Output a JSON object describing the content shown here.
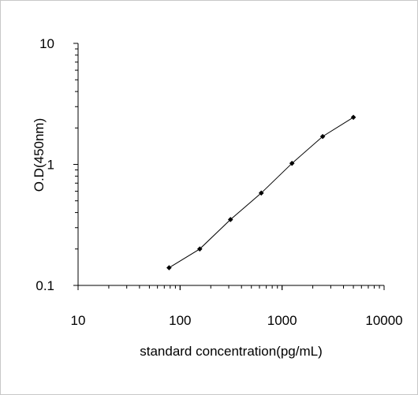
{
  "chart_data": {
    "type": "line",
    "title": "",
    "xlabel": "standard concentration(pg/mL)",
    "ylabel": "O.D(450nm)",
    "x_scale": "log",
    "y_scale": "log",
    "xlim": [
      10,
      10000
    ],
    "ylim": [
      0.1,
      10
    ],
    "x_ticks": [
      "10",
      "100",
      "1000",
      "10000"
    ],
    "y_ticks": [
      "0.1",
      "1",
      "10"
    ],
    "grid": false,
    "legend": "none",
    "series": [
      {
        "x": [
          78,
          156,
          312,
          625,
          1250,
          2500,
          5000
        ],
        "y": [
          0.14,
          0.2,
          0.35,
          0.58,
          1.02,
          1.7,
          2.45
        ]
      }
    ],
    "colors": {
      "line": "#000000",
      "marker": "#000000",
      "axis": "#000000"
    }
  }
}
